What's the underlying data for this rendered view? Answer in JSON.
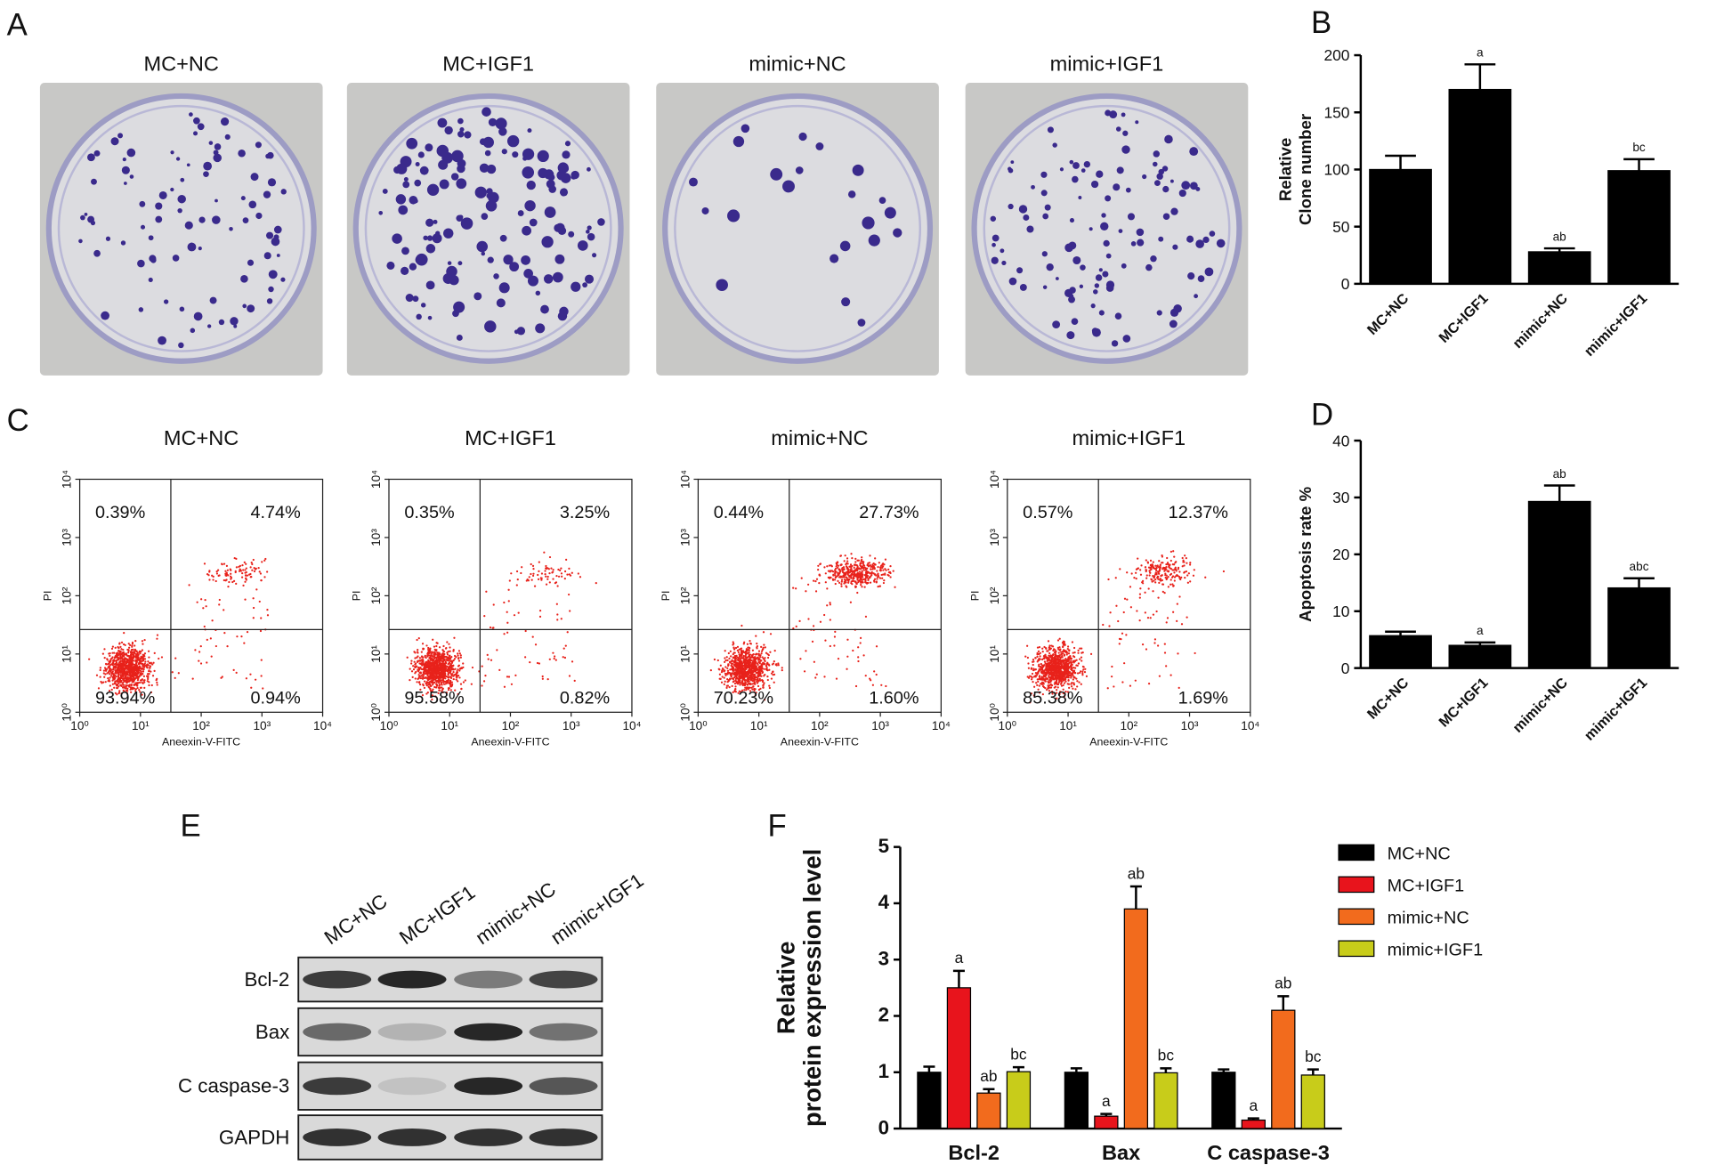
{
  "panels": [
    "A",
    "B",
    "C",
    "D",
    "E",
    "F"
  ],
  "colony_assay": {
    "titles": [
      "MC+NC",
      "MC+IGF1",
      "mimic+NC",
      "mimic+IGF1"
    ]
  },
  "flow_cytometry": {
    "xlabel": "Aneexin-V-FITC",
    "ylabel": "PI",
    "ticks": [
      {
        "value": 1,
        "label": "10⁰"
      },
      {
        "value": 10,
        "label": "10¹"
      },
      {
        "value": 100,
        "label": "10²"
      },
      {
        "value": 1000,
        "label": "10³"
      },
      {
        "value": 10000,
        "label": "10⁴"
      }
    ],
    "plots": [
      {
        "title": "MC+NC",
        "quadrants": {
          "upper_left": "0.39%",
          "upper_right": "4.74%",
          "lower_left": "93.94%",
          "lower_right": "0.94%"
        }
      },
      {
        "title": "MC+IGF1",
        "quadrants": {
          "upper_left": "0.35%",
          "upper_right": "3.25%",
          "lower_left": "95.58%",
          "lower_right": "0.82%"
        }
      },
      {
        "title": "mimic+NC",
        "quadrants": {
          "upper_left": "0.44%",
          "upper_right": "27.73%",
          "lower_left": "70.23%",
          "lower_right": "1.60%"
        }
      },
      {
        "title": "mimic+IGF1",
        "quadrants": {
          "upper_left": "0.57%",
          "upper_right": "12.37%",
          "lower_left": "85.38%",
          "lower_right": "1.69%"
        }
      }
    ]
  },
  "western_blot": {
    "lanes": [
      "MC+NC",
      "MC+IGF1",
      "mimic+NC",
      "mimic+IGF1"
    ],
    "proteins": [
      "Bcl-2",
      "Bax",
      "C caspase-3",
      "GAPDH"
    ]
  },
  "chart_data": [
    {
      "type": "bar",
      "ylabel": [
        "Relative",
        "Clone number"
      ],
      "categories": [
        "MC+NC",
        "MC+IGF1",
        "mimic+NC",
        "mimic+IGF1"
      ],
      "values": [
        100,
        170,
        28,
        99
      ],
      "errors": [
        12,
        22,
        3,
        10
      ],
      "annotations": [
        null,
        "a",
        "ab",
        "bc"
      ],
      "color": "#000000",
      "ylim": [
        0,
        200
      ],
      "yticks": [
        0,
        50,
        100,
        150,
        200
      ],
      "grid": false
    },
    {
      "type": "bar",
      "ylabel": [
        "Apoptosis rate %"
      ],
      "categories": [
        "MC+NC",
        "MC+IGF1",
        "mimic+NC",
        "mimic+IGF1"
      ],
      "values": [
        5.7,
        4.0,
        29.3,
        14.1
      ],
      "errors": [
        0.7,
        0.5,
        2.8,
        1.7
      ],
      "annotations": [
        null,
        "a",
        "ab",
        "abc"
      ],
      "color": "#000000",
      "ylim": [
        0,
        40
      ],
      "yticks": [
        0,
        10,
        20,
        30,
        40
      ],
      "grid": false
    },
    {
      "type": "grouped_bar",
      "ylabel": [
        "Relative",
        "protein expression level"
      ],
      "categories": [
        "Bcl-2",
        "Bax",
        "C caspase-3"
      ],
      "series": [
        {
          "name": "MC+NC",
          "color": "#000000",
          "values": [
            1.0,
            1.0,
            1.0
          ],
          "errors": [
            0.1,
            0.07,
            0.05
          ],
          "annotations": [
            null,
            null,
            null
          ]
        },
        {
          "name": "MC+IGF1",
          "color": "#e8141c",
          "values": [
            2.5,
            0.22,
            0.15
          ],
          "errors": [
            0.3,
            0.04,
            0.03
          ],
          "annotations": [
            "a",
            "a",
            "a"
          ]
        },
        {
          "name": "mimic+NC",
          "color": "#f26b1d",
          "values": [
            0.63,
            3.9,
            2.1
          ],
          "errors": [
            0.07,
            0.4,
            0.25
          ],
          "annotations": [
            "ab",
            "ab",
            "ab"
          ]
        },
        {
          "name": "mimic+IGF1",
          "color": "#c8cc1a",
          "values": [
            1.01,
            0.99,
            0.95
          ],
          "errors": [
            0.08,
            0.08,
            0.1
          ],
          "annotations": [
            "bc",
            "bc",
            "bc"
          ]
        }
      ],
      "ylim": [
        0,
        5
      ],
      "yticks": [
        0,
        1,
        2,
        3,
        4,
        5
      ],
      "grid": false,
      "legend": "right"
    }
  ]
}
